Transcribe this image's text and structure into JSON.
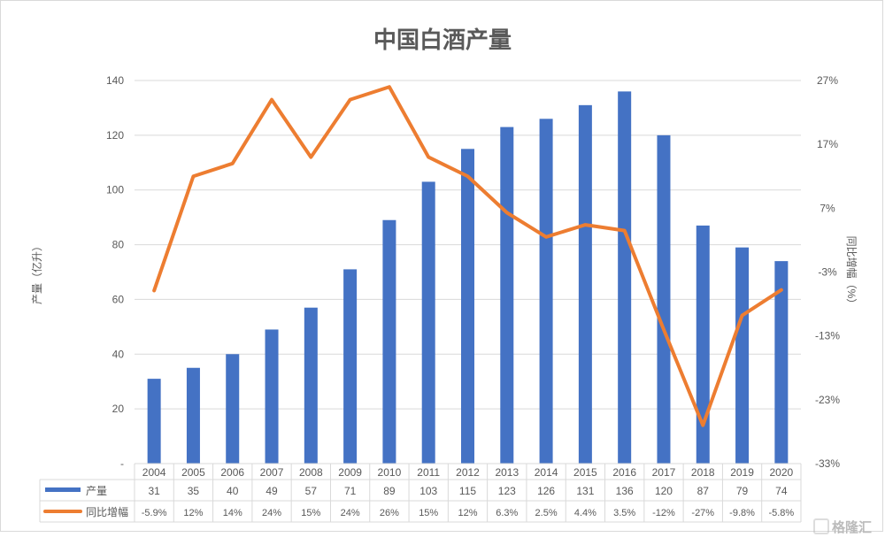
{
  "chart_data": {
    "type": "bar+line",
    "title": "中国白酒产量",
    "ylabel": "产量（亿升）",
    "y2label": "同比增幅（%）",
    "categories": [
      "2004",
      "2005",
      "2006",
      "2007",
      "2008",
      "2009",
      "2010",
      "2011",
      "2012",
      "2013",
      "2014",
      "2015",
      "2016",
      "2017",
      "2018",
      "2019",
      "2020"
    ],
    "ylim": [
      0,
      140
    ],
    "yticks": [
      "-",
      "20",
      "40",
      "60",
      "80",
      "100",
      "120",
      "140"
    ],
    "y2lim": [
      -33,
      27
    ],
    "y2ticks": [
      "-33%",
      "-23%",
      "-13%",
      "-3%",
      "7%",
      "17%",
      "27%"
    ],
    "grid": true,
    "legend": "data-table",
    "series": [
      {
        "name": "产量",
        "type": "bar",
        "color": "#4472C4",
        "axis": "left",
        "values": [
          31,
          35,
          40,
          49,
          57,
          71,
          89,
          103,
          115,
          123,
          126,
          131,
          136,
          120,
          87,
          79,
          74
        ],
        "labels": [
          "31",
          "35",
          "40",
          "49",
          "57",
          "71",
          "89",
          "103",
          "115",
          "123",
          "126",
          "131",
          "136",
          "120",
          "87",
          "79",
          "74"
        ]
      },
      {
        "name": "同比增幅",
        "type": "line",
        "color": "#ED7D31",
        "axis": "right",
        "values": [
          -5.9,
          12,
          14,
          24,
          15,
          24,
          26,
          15,
          12,
          6.3,
          2.5,
          4.4,
          3.5,
          -12,
          -27,
          -9.8,
          -5.8
        ],
        "labels": [
          "-5.9%",
          "12%",
          "14%",
          "24%",
          "15%",
          "24%",
          "26%",
          "15%",
          "12%",
          "6.3%",
          "2.5%",
          "4.4%",
          "3.5%",
          "-12%",
          "-27%",
          "-9.8%",
          "-5.8%"
        ]
      }
    ]
  },
  "watermark": "格隆汇"
}
